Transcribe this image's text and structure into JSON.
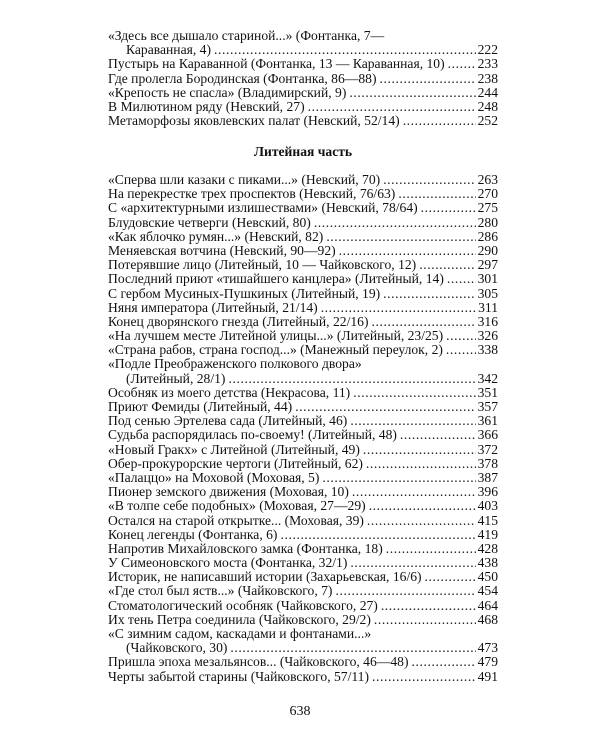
{
  "top_entries": [
    {
      "title": "«Здесь все дышало стариной...» (Фонтанка, 7—",
      "cont": "Караванная, 4)",
      "page": "222"
    },
    {
      "title": "Пустырь на Караванной (Фонтанка, 13 — Караванная, 10)",
      "page": "233"
    },
    {
      "title": "Где пролегла Бородинская (Фонтанка, 86—88)",
      "page": "238"
    },
    {
      "title": "«Крепость не спасла» (Владимирский, 9)",
      "page": "244"
    },
    {
      "title": "В Милютином ряду (Невский, 27)",
      "page": "248"
    },
    {
      "title": "Метаморфозы яковлевских палат (Невский, 52/14)",
      "page": "252"
    }
  ],
  "section_heading": "Литейная часть",
  "section_entries": [
    {
      "title": "«Сперва шли казаки с пиками...» (Невский, 70)",
      "page": "263"
    },
    {
      "title": "На перекрестке трех проспектов (Невский, 76/63)",
      "page": "270"
    },
    {
      "title": "С «архитектурными излишествами» (Невский, 78/64)",
      "page": "275"
    },
    {
      "title": "Блудовские четверги (Невский, 80)",
      "page": "280"
    },
    {
      "title": "«Как яблочко румян...» (Невский, 82)",
      "page": "286"
    },
    {
      "title": "Меняевская вотчина (Невский, 90—92)",
      "page": "290"
    },
    {
      "title": "Потерявшие лицо (Литейный, 10 — Чайковского, 12)",
      "page": "297"
    },
    {
      "title": "Последний приют «тишайшего канцлера» (Литейный, 14)",
      "page": "301"
    },
    {
      "title": "С гербом Мусиных-Пушкиных (Литейный, 19)",
      "page": "305"
    },
    {
      "title": "Няня императора (Литейный, 21/14)",
      "page": "311"
    },
    {
      "title": "Конец дворянского гнезда (Литейный, 22/16)",
      "page": "316"
    },
    {
      "title": "«На лучшем месте Литейной улицы...» (Литейный, 23/25)",
      "page": "326"
    },
    {
      "title": "«Страна рабов, страна господ...» (Манежный переулок, 2)",
      "page": "338"
    },
    {
      "title": "«Подле Преображенского полкового двора»",
      "cont": "(Литейный, 28/1)",
      "page": "342"
    },
    {
      "title": "Особняк из моего детства (Некрасова, 11)",
      "page": "351"
    },
    {
      "title": "Приют Фемиды (Литейный, 44)",
      "page": "357"
    },
    {
      "title": "Под сенью Эртелева сада (Литейный, 46)",
      "page": "361"
    },
    {
      "title": "Судьба распорядилась по-своему! (Литейный, 48)",
      "page": "366"
    },
    {
      "title": "«Новый Гракх» с Литейной (Литейный, 49)",
      "page": "372"
    },
    {
      "title": "Обер-прокурорские чертоги (Литейный, 62)",
      "page": "378"
    },
    {
      "title": "«Палаццо» на Моховой (Моховая, 5)",
      "page": "387"
    },
    {
      "title": "Пионер земского движения (Моховая, 10)",
      "page": "396"
    },
    {
      "title": "«В толпе себе подобных» (Моховая, 27—29)",
      "page": "403"
    },
    {
      "title": "Остался на старой открытке... (Моховая, 39)",
      "page": "415"
    },
    {
      "title": "Конец легенды (Фонтанка, 6)",
      "page": "419"
    },
    {
      "title": "Напротив Михайловского замка (Фонтанка, 18)",
      "page": "428"
    },
    {
      "title": "У Симеоновского моста (Фонтанка, 32/1)",
      "page": "438"
    },
    {
      "title": "Историк, не написавший истории (Захарьевская, 16/6)",
      "page": "450"
    },
    {
      "title": "«Где стол был яств...» (Чайковского, 7)",
      "page": "454"
    },
    {
      "title": "Стоматологический особняк (Чайковского, 27)",
      "page": "464"
    },
    {
      "title": "Их тень Петра соединила (Чайковского, 29/2)",
      "page": "468"
    },
    {
      "title": "«С зимним садом, каскадами и фонтанами...»",
      "cont": "(Чайковского, 30)",
      "page": "473"
    },
    {
      "title": "Пришла эпоха мезальянсов... (Чайковского, 46—48)",
      "page": "479"
    },
    {
      "title": "Черты забытой старины (Чайковского, 57/11)",
      "page": "491"
    }
  ],
  "page_number": "638"
}
